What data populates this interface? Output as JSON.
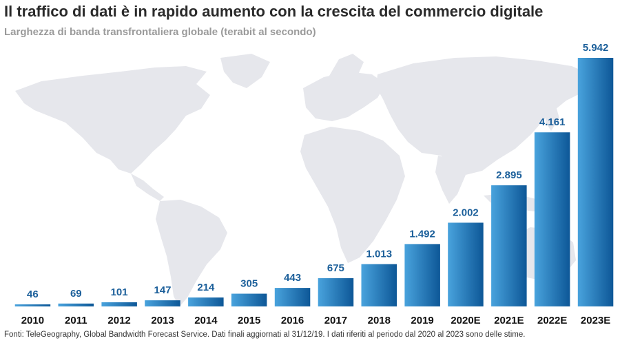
{
  "title": "Il traffico di dati è in rapido aumento con la crescita del commercio digitale",
  "subtitle": "Larghezza di banda transfrontaliera globale (terabit al secondo)",
  "source": "Fonti: TeleGeography, Global Bandwidth Forecast Service. Dati finali aggiornati al 31/12/19. I dati riferiti al periodo dal 2020 al 2023 sono delle stime.",
  "colors": {
    "bar_light": "#49a3dd",
    "bar_dark": "#0d5797",
    "value_label": "#1b5f9a",
    "map": "#e6e7ec"
  },
  "chart_data": {
    "type": "bar",
    "title": "Il traffico di dati è in rapido aumento con la crescita del commercio digitale",
    "subtitle": "Larghezza di banda transfrontaliera globale (terabit al secondo)",
    "xlabel": "",
    "ylabel": "",
    "categories": [
      "2010",
      "2011",
      "2012",
      "2013",
      "2014",
      "2015",
      "2016",
      "2017",
      "2018",
      "2019",
      "2020E",
      "2021E",
      "2022E",
      "2023E"
    ],
    "values": [
      46,
      69,
      101,
      147,
      214,
      305,
      443,
      675,
      1013,
      1492,
      2002,
      2895,
      4161,
      5942
    ],
    "value_labels": [
      "46",
      "69",
      "101",
      "147",
      "214",
      "305",
      "443",
      "675",
      "1.013",
      "1.492",
      "2.002",
      "2.895",
      "4.161",
      "5.942"
    ],
    "ylim": [
      0,
      5942
    ],
    "grid": false,
    "legend": "none"
  }
}
